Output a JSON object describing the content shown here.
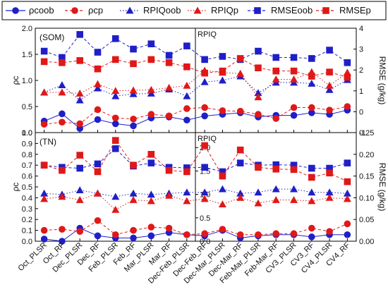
{
  "chart_data": {
    "type": "scatter",
    "legend": {
      "placement": "top",
      "entries": [
        {
          "label": "ρcoob",
          "color": "#1f1fc8",
          "marker": "circle",
          "line": "solid"
        },
        {
          "label": "ρcp",
          "color": "#e01818",
          "marker": "circle",
          "line": "dashed"
        },
        {
          "label": "RPIQoob",
          "color": "#1f1fc8",
          "marker": "triangle",
          "line": "dotted"
        },
        {
          "label": "RPIQp",
          "color": "#e01818",
          "marker": "triangle",
          "line": "dotted"
        },
        {
          "label": "RMSEoob",
          "color": "#1f1fc8",
          "marker": "square",
          "line": "dashed"
        },
        {
          "label": "RMSEp",
          "color": "#e01818",
          "marker": "square",
          "line": "dashed"
        }
      ]
    },
    "categories": [
      "Oct_PLSR",
      "Oct_RF",
      "Dec_PLSR",
      "Dec_RF",
      "Feb_PLSR",
      "Feb_RF",
      "Mar_PLSR",
      "Mar_RF",
      "Dec-Feb_PLSR",
      "Dec-Feb_RF",
      "Dec-Mar_PLSR",
      "Dec-Mar_RF",
      "Feb-Mar_PLSR",
      "Feb-Mar_RF",
      "CV3_PLSR",
      "CV3_RF",
      "CV4_PLSR",
      "CV4_RF"
    ],
    "panels": [
      {
        "label": "(SOM)",
        "left_axis": {
          "title": "ρc",
          "ylim": [
            0,
            2.0
          ],
          "ticks": [
            "0.0",
            "0.5",
            "1.0",
            "1.5",
            "2.0"
          ]
        },
        "mid_axis": {
          "title": "RPIQ"
        },
        "right_axis": {
          "title": "RMSE (g/kg)",
          "ylim": [
            -1,
            4
          ],
          "ticks": [
            "-1",
            "0",
            "1",
            "2",
            "3",
            "4"
          ]
        },
        "series": [
          {
            "name": "ρcoob",
            "axis": "left",
            "values": [
              0.22,
              0.36,
              0.08,
              0.25,
              0.17,
              0.13,
              0.28,
              0.3,
              0.24,
              0.32,
              0.35,
              0.38,
              0.3,
              0.33,
              0.33,
              0.38,
              0.35,
              0.43
            ]
          },
          {
            "name": "ρcp",
            "axis": "left",
            "values": [
              0.16,
              0.2,
              0.17,
              0.44,
              0.28,
              0.26,
              0.35,
              0.32,
              0.46,
              0.48,
              0.42,
              0.41,
              0.35,
              0.27,
              0.48,
              0.48,
              0.43,
              0.5
            ]
          },
          {
            "name": "RPIQoob",
            "axis": "left",
            "values": [
              0.77,
              0.91,
              0.62,
              0.85,
              0.7,
              0.74,
              0.75,
              0.83,
              0.7,
              0.97,
              1.0,
              1.08,
              0.76,
              0.96,
              0.96,
              0.94,
              0.82,
              1.01
            ]
          },
          {
            "name": "RPIQp",
            "axis": "left",
            "values": [
              0.77,
              0.77,
              0.75,
              0.93,
              0.8,
              0.81,
              0.82,
              0.86,
              0.9,
              1.19,
              1.15,
              1.13,
              0.68,
              1.02,
              1.02,
              1.16,
              0.9,
              1.15
            ]
          },
          {
            "name": "RMSEoob",
            "axis": "right",
            "values": [
              2.9,
              2.6,
              3.7,
              2.85,
              3.5,
              3.0,
              3.25,
              2.7,
              3.15,
              2.5,
              2.65,
              2.5,
              2.9,
              2.6,
              2.6,
              2.55,
              2.95,
              2.35
            ]
          },
          {
            "name": "RMSEp",
            "axis": "right",
            "values": [
              2.4,
              2.35,
              2.45,
              2.05,
              2.5,
              2.3,
              2.5,
              2.35,
              2.15,
              1.85,
              1.95,
              2.55,
              2.1,
              1.95,
              1.95,
              1.7,
              1.9,
              1.65
            ]
          }
        ]
      },
      {
        "label": "(TN)",
        "left_axis": {
          "title": "ρc",
          "ylim": [
            0,
            1.0
          ],
          "ticks": [
            "0.0",
            "0.1",
            "0.2",
            "0.3",
            "0.4",
            "0.5",
            "0.6",
            "0.7",
            "0.8",
            "0.9",
            "1.0"
          ]
        },
        "mid_axis": {
          "title": "RPIQ",
          "ylim": [
            0,
            2.32
          ],
          "ticks": [
            "0.0",
            "0.5",
            "1.0",
            "1.5",
            "2.0"
          ]
        },
        "right_axis": {
          "title": "RMSE (g/kg)",
          "ylim": [
            0,
            0.25
          ],
          "ticks": [
            "0.00",
            "0.05",
            "0.10",
            "0.15",
            "0.20",
            "0.25"
          ]
        },
        "series": [
          {
            "name": "ρcoob",
            "axis": "left",
            "values": [
              0.02,
              0.0,
              0.12,
              0.05,
              0.03,
              0.03,
              0.05,
              0.08,
              0.06,
              0.05,
              0.1,
              0.03,
              0.05,
              0.06,
              0.06,
              0.04,
              0.06,
              0.06
            ]
          },
          {
            "name": "ρcp",
            "axis": "left",
            "values": [
              0.1,
              0.11,
              0.09,
              0.19,
              0.06,
              0.1,
              0.13,
              0.12,
              0.06,
              0.07,
              0.11,
              0.06,
              0.06,
              0.07,
              0.07,
              0.12,
              0.09,
              0.16
            ]
          },
          {
            "name": "RPIQoob",
            "axis": "left",
            "values": [
              0.44,
              0.43,
              0.47,
              0.44,
              0.41,
              0.44,
              0.43,
              0.44,
              0.45,
              0.45,
              0.48,
              0.44,
              0.45,
              0.48,
              0.48,
              0.45,
              0.45,
              0.44
            ]
          },
          {
            "name": "RPIQp",
            "axis": "left",
            "values": [
              0.39,
              0.41,
              0.38,
              0.44,
              0.29,
              0.38,
              0.37,
              0.42,
              0.37,
              0.39,
              0.34,
              0.4,
              0.35,
              0.38,
              0.38,
              0.37,
              0.4,
              0.39
            ]
          },
          {
            "name": "RMSEoob",
            "axis": "right",
            "values": [
              0.175,
              0.17,
              0.168,
              0.178,
              0.213,
              0.173,
              0.18,
              0.17,
              0.169,
              0.17,
              0.16,
              0.18,
              0.175,
              0.176,
              0.175,
              0.168,
              0.168,
              0.18
            ]
          },
          {
            "name": "RMSEp",
            "axis": "right",
            "values": [
              0.175,
              0.163,
              0.198,
              0.16,
              0.232,
              0.175,
              0.2,
              0.163,
              0.16,
              0.22,
              0.15,
              0.21,
              0.17,
              0.166,
              0.165,
              0.147,
              0.157,
              0.137
            ]
          }
        ]
      }
    ]
  }
}
